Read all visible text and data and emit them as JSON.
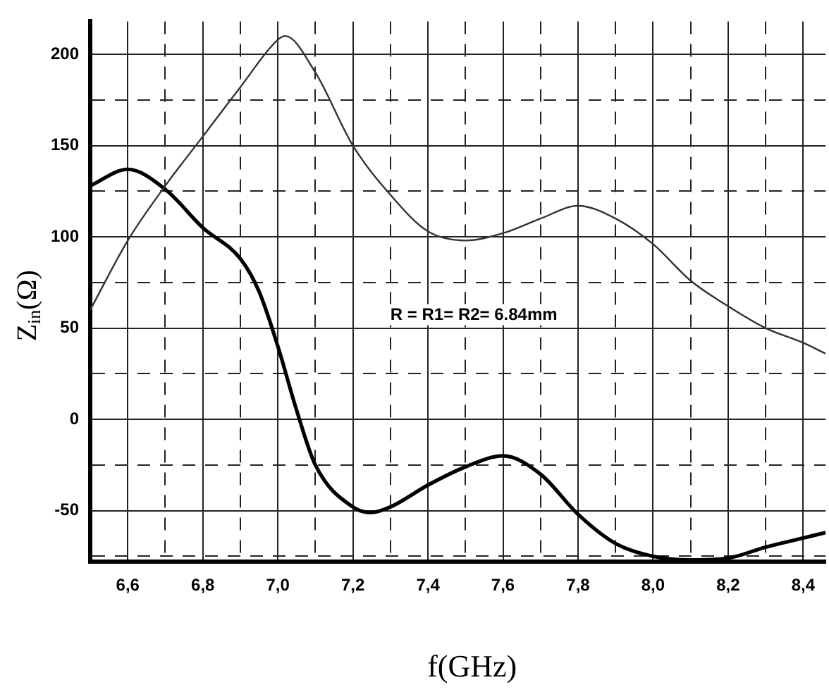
{
  "chart_data": {
    "type": "line",
    "xlabel": "f(GHz)",
    "ylabel": "Z$_{in}$(Ω)",
    "x": [
      6.5,
      6.6,
      6.7,
      6.8,
      6.9,
      7.0,
      7.02,
      7.1,
      7.2,
      7.3,
      7.4,
      7.5,
      7.6,
      7.7,
      7.8,
      7.9,
      8.0,
      8.1,
      8.2,
      8.3,
      8.4,
      8.46
    ],
    "series": [
      {
        "color": "#333333",
        "values": [
          60,
          98,
          128,
          155,
          182,
          208,
          210,
          190,
          150,
          123,
          103,
          98,
          102,
          110,
          117,
          110,
          96,
          76,
          62,
          50,
          42,
          36
        ]
      },
      {
        "color": "#000000",
        "x": [
          6.5,
          6.6,
          6.7,
          6.8,
          6.9,
          6.95,
          7.0,
          7.05,
          7.1,
          7.2,
          7.25,
          7.3,
          7.4,
          7.5,
          7.6,
          7.7,
          7.8,
          7.9,
          8.0,
          8.1,
          8.2,
          8.3,
          8.4,
          8.46
        ],
        "values": [
          128,
          137,
          126,
          105,
          88,
          70,
          40,
          5,
          -25,
          -48,
          -51,
          -48,
          -36,
          -26,
          -20,
          -30,
          -52,
          -68,
          -75,
          -77,
          -76,
          -70,
          -65,
          -62
        ]
      }
    ],
    "xlim": [
      6.5,
      8.46
    ],
    "ylim": [
      -78,
      218
    ],
    "xticks": [
      {
        "value": 6.6,
        "label": "6,6"
      },
      {
        "value": 6.7,
        "label": null
      },
      {
        "value": 6.8,
        "label": "6,8"
      },
      {
        "value": 6.9,
        "label": null
      },
      {
        "value": 7.0,
        "label": "7,0"
      },
      {
        "value": 7.1,
        "label": null
      },
      {
        "value": 7.2,
        "label": "7,2"
      },
      {
        "value": 7.3,
        "label": null
      },
      {
        "value": 7.4,
        "label": "7,4"
      },
      {
        "value": 7.5,
        "label": null
      },
      {
        "value": 7.6,
        "label": "7,6"
      },
      {
        "value": 7.7,
        "label": null
      },
      {
        "value": 7.8,
        "label": "7,8"
      },
      {
        "value": 7.9,
        "label": null
      },
      {
        "value": 8.0,
        "label": "8,0"
      },
      {
        "value": 8.1,
        "label": null
      },
      {
        "value": 8.2,
        "label": "8,2"
      },
      {
        "value": 8.3,
        "label": null
      },
      {
        "value": 8.4,
        "label": "8,4"
      }
    ],
    "yticks": [
      {
        "value": -75,
        "label": null
      },
      -50,
      {
        "value": -25,
        "label": null
      },
      0,
      {
        "value": 25,
        "label": null
      },
      50,
      {
        "value": 75,
        "label": null
      },
      100,
      {
        "value": 125,
        "label": null
      },
      150,
      {
        "value": 175,
        "label": null
      },
      200
    ],
    "grid": true,
    "legend": false,
    "marker": "none",
    "line_style": "solid",
    "annotations": [
      "R = R1= R2= 6.84mm"
    ]
  }
}
